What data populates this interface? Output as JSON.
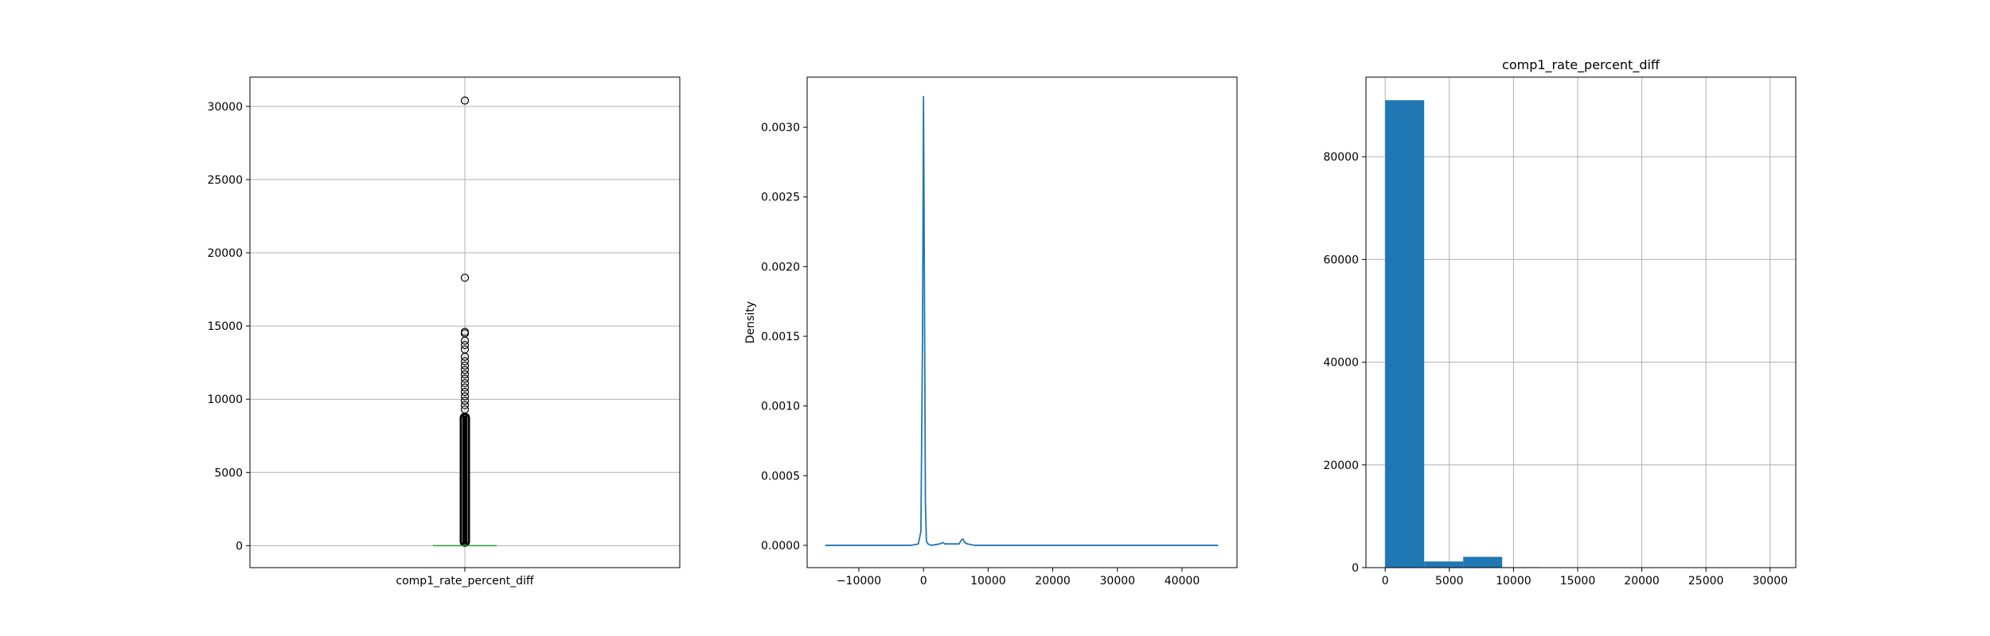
{
  "chart_data": [
    {
      "type": "box",
      "xlabel": "comp1_rate_percent_diff",
      "ylabel": "",
      "title": "",
      "grid": true,
      "ylim": [
        -1500,
        32000
      ],
      "yticks": [
        0,
        5000,
        10000,
        15000,
        20000,
        25000,
        30000
      ],
      "box": {
        "whisker_low": 0,
        "q1": 0,
        "median": 0,
        "q3": 0,
        "whisker_high": 0,
        "dense_outliers_range": [
          0,
          9000
        ],
        "outliers": [
          30400,
          18300,
          14600,
          14500,
          14000,
          13700,
          13400,
          12900,
          12600,
          12300,
          12000,
          11700,
          11400,
          11100,
          10800,
          10500,
          10200,
          9900,
          9600,
          9300
        ]
      },
      "colors": {
        "median": "#2ca02c",
        "outline": "#1f77b4"
      }
    },
    {
      "type": "line",
      "xlabel": "",
      "ylabel": "Density",
      "title": "",
      "grid": false,
      "xlim": [
        -18000,
        48500
      ],
      "ylim": [
        -0.00016,
        0.00336
      ],
      "xticks": [
        -10000,
        0,
        10000,
        20000,
        30000,
        40000
      ],
      "xtick_labels": [
        "−10000",
        "0",
        "10000",
        "20000",
        "30000",
        "40000"
      ],
      "yticks": [
        0.0,
        0.0005,
        0.001,
        0.0015,
        0.002,
        0.0025,
        0.003
      ],
      "ytick_labels": [
        "0.0000",
        "0.0005",
        "0.0010",
        "0.0015",
        "0.0020",
        "0.0025",
        "0.0030"
      ],
      "series": [
        {
          "color": "#1f77b4",
          "x": [
            -15200,
            -2000,
            -800,
            -400,
            -150,
            0,
            150,
            300,
            450,
            700,
            1200,
            2500,
            3000,
            3300,
            3600,
            5500,
            5900,
            6100,
            6400,
            6800,
            8000,
            12000,
            20000,
            30000,
            40000,
            45600
          ],
          "y": [
            0,
            0,
            1e-05,
            0.0001,
            0.0015,
            0.00322,
            0.0018,
            0.0003,
            3e-05,
            1e-05,
            0,
            1e-05,
            2e-05,
            1e-05,
            1e-05,
            1e-05,
            4e-05,
            4.5e-05,
            2e-05,
            1e-05,
            0,
            0,
            0,
            0,
            0,
            0
          ]
        }
      ]
    },
    {
      "type": "bar",
      "title": "comp1_rate_percent_diff",
      "xlabel": "",
      "ylabel": "",
      "grid": true,
      "xlim": [
        -1500,
        32000
      ],
      "ylim": [
        0,
        95500
      ],
      "xticks": [
        0,
        5000,
        10000,
        15000,
        20000,
        25000,
        30000
      ],
      "yticks": [
        0,
        20000,
        40000,
        60000,
        80000
      ],
      "bins": [
        0,
        3040,
        6080,
        9120,
        12160,
        15200,
        18240,
        21280,
        24320,
        27360,
        30400
      ],
      "counts": [
        91000,
        1200,
        2100,
        90,
        20,
        1,
        1,
        0,
        0,
        1
      ],
      "colors": {
        "bar": "#1f77b4"
      }
    }
  ]
}
